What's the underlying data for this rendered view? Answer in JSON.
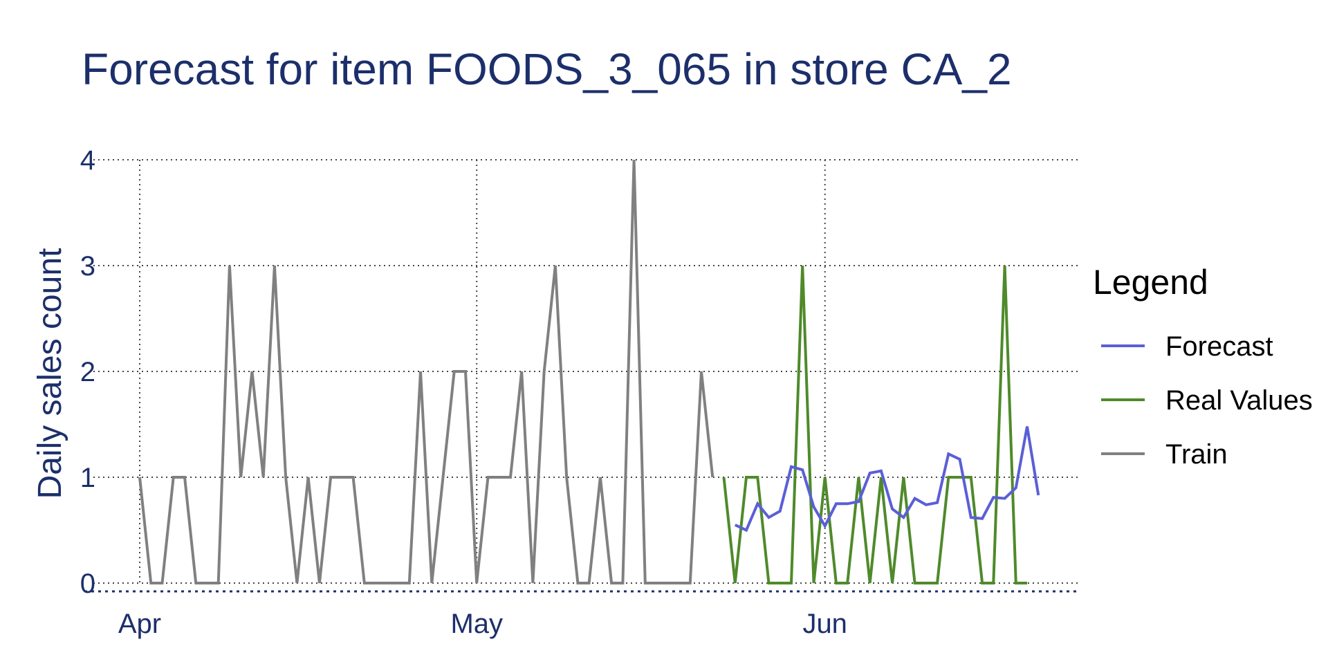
{
  "chart_data": {
    "type": "line",
    "title": "Forecast for item FOODS_3_065 in store CA_2",
    "ylabel": "Daily sales count",
    "xlabel": "",
    "x_ticks": [
      {
        "label": "Apr",
        "date": "2016-04-01"
      },
      {
        "label": "May",
        "date": "2016-05-01"
      },
      {
        "label": "Jun",
        "date": "2016-06-01"
      }
    ],
    "y_ticks": [
      0,
      1,
      2,
      3,
      4
    ],
    "ylim": [
      0,
      4
    ],
    "xlim": [
      "2016-04-01",
      "2016-06-23"
    ],
    "grid": true,
    "legend": {
      "title": "Legend",
      "position": "right",
      "entries": [
        "Forecast",
        "Real Values",
        "Train"
      ]
    },
    "series": [
      {
        "name": "Forecast",
        "color": "#5a5fd6",
        "start_date": "2016-05-24",
        "values": [
          0.55,
          0.5,
          0.75,
          0.62,
          0.68,
          1.1,
          1.07,
          0.72,
          0.54,
          0.75,
          0.75,
          0.77,
          1.04,
          1.06,
          0.7,
          0.62,
          0.8,
          0.74,
          0.76,
          1.22,
          1.17,
          0.62,
          0.61,
          0.81,
          0.8,
          0.9,
          1.48,
          0.83
        ]
      },
      {
        "name": "Real Values",
        "color": "#4f8a2b",
        "start_date": "2016-05-23",
        "values": [
          1,
          0,
          1,
          1,
          0,
          0,
          0,
          3,
          0,
          1,
          0,
          0,
          1,
          0,
          1,
          0,
          1,
          0,
          0,
          0,
          1,
          1,
          1,
          0,
          0,
          3,
          0,
          0
        ]
      },
      {
        "name": "Train",
        "color": "#808080",
        "start_date": "2016-04-01",
        "values": [
          1,
          0,
          0,
          1,
          1,
          0,
          0,
          0,
          3,
          1,
          2,
          1,
          3,
          1,
          0,
          1,
          0,
          1,
          1,
          1,
          0,
          0,
          0,
          0,
          0,
          2,
          0,
          1,
          2,
          2,
          0,
          1,
          1,
          1,
          2,
          0,
          2,
          3,
          1,
          0,
          0,
          1,
          0,
          0,
          4,
          0,
          0,
          0,
          0,
          0,
          2,
          1
        ]
      }
    ],
    "colors": {
      "title": "#1c2f6b",
      "grid": "#444444",
      "baseline": "#1c2f6b"
    }
  }
}
